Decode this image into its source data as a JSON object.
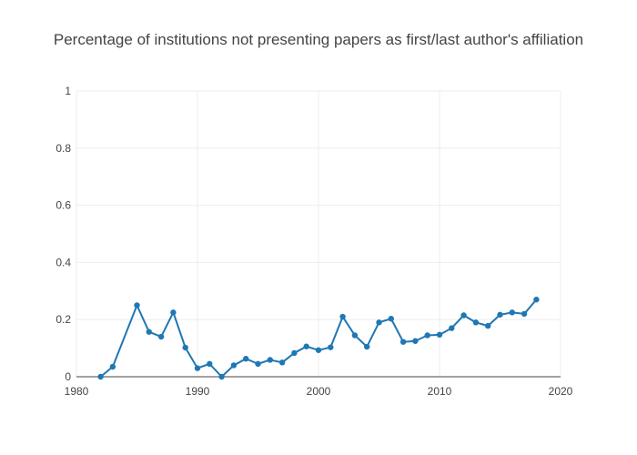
{
  "chart_data": {
    "type": "line",
    "title": "Percentage of institutions not presenting papers as first/last author's affiliation",
    "xlabel": "",
    "ylabel": "",
    "xlim": [
      1980,
      2020
    ],
    "ylim": [
      0,
      1
    ],
    "x_ticks": [
      "1980",
      "1990",
      "2000",
      "2010",
      "2020"
    ],
    "y_ticks": [
      "0",
      "0.2",
      "0.4",
      "0.6",
      "0.8",
      "1"
    ],
    "grid": true,
    "legend": false,
    "colors": {
      "line": "#1f77b4",
      "grid": "#eeeeee",
      "axis": "#444444"
    },
    "series": [
      {
        "x": [
          1982,
          1983,
          1985,
          1986,
          1987,
          1988,
          1989,
          1990,
          1991,
          1992,
          1993,
          1994,
          1995,
          1996,
          1997,
          1998,
          1999,
          2000,
          2001,
          2002,
          2003,
          2004,
          2005,
          2006,
          2007,
          2008,
          2009,
          2010,
          2011,
          2012,
          2013,
          2014,
          2015,
          2016,
          2017,
          2018
        ],
        "y": [
          0.0,
          0.035,
          0.25,
          0.157,
          0.14,
          0.225,
          0.102,
          0.03,
          0.045,
          0.0,
          0.04,
          0.063,
          0.045,
          0.059,
          0.05,
          0.083,
          0.106,
          0.093,
          0.103,
          0.21,
          0.145,
          0.105,
          0.19,
          0.203,
          0.122,
          0.125,
          0.145,
          0.147,
          0.17,
          0.215,
          0.19,
          0.178,
          0.217,
          0.225,
          0.22,
          0.27
        ]
      }
    ]
  }
}
